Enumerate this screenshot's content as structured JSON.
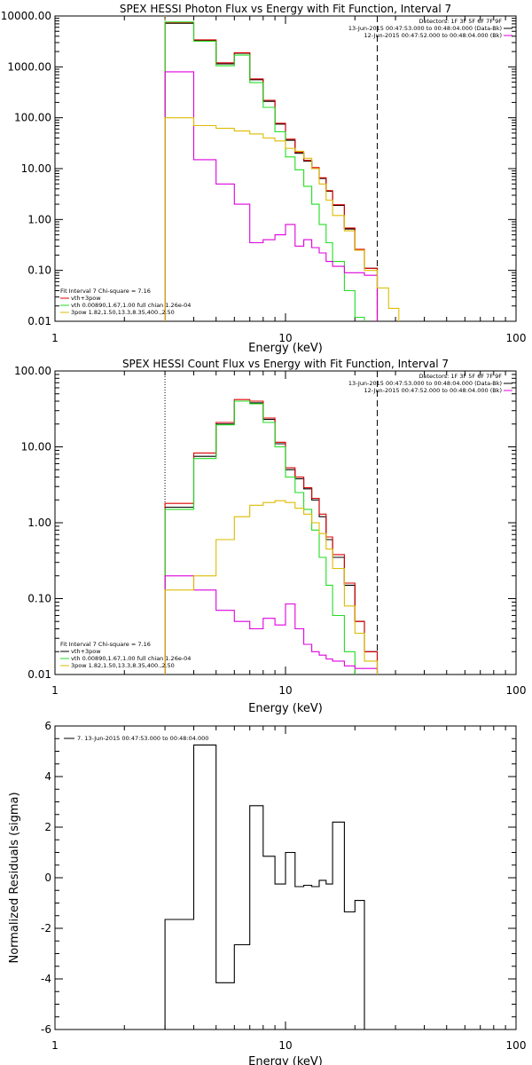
{
  "chart_data": [
    {
      "type": "line",
      "title": "SPEX HESSI Photon Flux vs Energy with Fit Function, Interval 7",
      "xlabel": "Energy (keV)",
      "ylabel": "",
      "x_scale": "log",
      "y_scale": "log",
      "xlim": [
        1,
        100
      ],
      "ylim": [
        0.01,
        10000
      ],
      "x_ticks": [
        {
          "v": 1,
          "label": "1"
        },
        {
          "v": 10,
          "label": "10"
        },
        {
          "v": 100,
          "label": "100"
        }
      ],
      "y_ticks": [
        {
          "v": 10000,
          "label": "10000.00"
        },
        {
          "v": 1000,
          "label": "1000.00"
        },
        {
          "v": 100,
          "label": "100.00"
        },
        {
          "v": 10,
          "label": "10.00"
        },
        {
          "v": 1,
          "label": "1.00"
        },
        {
          "v": 0.1,
          "label": "0.10"
        },
        {
          "v": 0.01,
          "label": "0.01"
        }
      ],
      "edges_keV": [
        3,
        4,
        5,
        6,
        7,
        8,
        9,
        10,
        11,
        12,
        13,
        14,
        15,
        16,
        18,
        20,
        22,
        25,
        28,
        31
      ],
      "series": [
        {
          "name": "",
          "color": "#000000",
          "values": [
            7200,
            3300,
            1150,
            1850,
            560,
            210,
            75,
            36,
            20,
            14,
            10,
            6.4,
            3.6,
            1.9,
            0.65,
            0.25,
            0.11,
            null,
            null
          ]
        },
        {
          "name": "",
          "color": "#dd0000",
          "values": [
            7400,
            3400,
            1200,
            1900,
            580,
            220,
            78,
            38,
            21,
            14.5,
            10.5,
            6.6,
            3.7,
            1.95,
            0.68,
            0.26,
            0.11,
            null,
            null
          ]
        },
        {
          "name": "",
          "color": "#22dd22",
          "values": [
            7600,
            3200,
            1050,
            1700,
            490,
            160,
            53,
            17,
            9.5,
            4.5,
            2.0,
            0.8,
            0.35,
            0.15,
            0.04,
            0.012,
            null,
            null,
            null
          ]
        },
        {
          "name": "",
          "color": "#dd00dd",
          "values": [
            800,
            15,
            5.0,
            2.0,
            0.35,
            0.4,
            0.5,
            0.8,
            0.3,
            0.4,
            0.28,
            0.22,
            0.15,
            0.12,
            0.09,
            0.09,
            0.08,
            null,
            null
          ]
        },
        {
          "name": "",
          "color": "#ddbb00",
          "values": [
            100,
            70,
            62,
            55,
            48,
            40,
            35,
            25,
            22,
            16,
            10,
            5.0,
            2.4,
            1.2,
            0.6,
            0.25,
            0.1,
            0.045,
            0.018
          ]
        }
      ],
      "vlines": [
        {
          "x": 3,
          "color": "#ddbb00",
          "style": "dotted"
        },
        {
          "x": 25,
          "color": "#000000",
          "style": "dashed"
        }
      ],
      "legend_top": [
        "Detectors: 1F 3F 5F 6F 7F 9F",
        "13-Jun-2015 00:47:53.000 to 00:48:04.000 (Data-Bk)",
        "12-Jun-2015 00:47:52.000 to 00:48:04.000 (Bk)"
      ],
      "legend_top_colors": [
        "",
        "#000000",
        "#dd00dd"
      ],
      "legend_bottom": [
        "Fit Interval 7   Chi-square = 7.16",
        "vth+3pow",
        "vth 0.00890,1.67,1.00  full chian 1.26e-04",
        "3pow  1.82,1.50,13.3,8.35,400.,2.50"
      ],
      "legend_bottom_colors": [
        "",
        "#dd0000",
        "#22dd22",
        "#ddbb00"
      ]
    },
    {
      "type": "line",
      "title": "SPEX HESSI Count Flux vs Energy with Fit Function, Interval 7",
      "xlabel": "Energy (keV)",
      "ylabel": "",
      "x_scale": "log",
      "y_scale": "log",
      "xlim": [
        1,
        100
      ],
      "ylim": [
        0.01,
        100
      ],
      "x_ticks": [
        {
          "v": 1,
          "label": "1"
        },
        {
          "v": 10,
          "label": "10"
        },
        {
          "v": 100,
          "label": "100"
        }
      ],
      "y_ticks": [
        {
          "v": 100,
          "label": "100.00"
        },
        {
          "v": 10,
          "label": "10.00"
        },
        {
          "v": 1,
          "label": "1.00"
        },
        {
          "v": 0.1,
          "label": "0.10"
        },
        {
          "v": 0.01,
          "label": "0.01"
        }
      ],
      "edges_keV": [
        3,
        4,
        5,
        6,
        7,
        8,
        9,
        10,
        11,
        12,
        13,
        14,
        15,
        16,
        18,
        20,
        22,
        25
      ],
      "series": [
        {
          "name": "",
          "color": "#000000",
          "values": [
            1.6,
            7.5,
            20,
            40,
            38,
            23,
            11,
            5.0,
            3.8,
            2.8,
            2.0,
            1.2,
            0.6,
            0.35,
            0.15,
            0.05,
            0.02
          ]
        },
        {
          "name": "",
          "color": "#dd0000",
          "values": [
            1.8,
            8.3,
            21,
            42,
            40,
            24,
            11.5,
            5.3,
            4.0,
            2.9,
            2.1,
            1.3,
            0.65,
            0.38,
            0.16,
            0.05,
            0.02
          ]
        },
        {
          "name": "",
          "color": "#22dd22",
          "values": [
            1.5,
            7.0,
            19.5,
            40,
            37,
            21,
            10,
            4.0,
            2.5,
            1.5,
            0.8,
            0.35,
            0.15,
            0.06,
            0.02,
            0.007,
            null
          ]
        },
        {
          "name": "",
          "color": "#dd00dd",
          "values": [
            0.2,
            0.13,
            0.07,
            0.05,
            0.04,
            0.055,
            0.045,
            0.085,
            0.04,
            0.025,
            0.02,
            0.018,
            0.016,
            0.015,
            0.013,
            0.012,
            0.012
          ]
        },
        {
          "name": "",
          "color": "#ddbb00",
          "values": [
            0.13,
            0.2,
            0.6,
            1.2,
            1.7,
            1.85,
            1.95,
            1.85,
            1.55,
            1.3,
            1.0,
            0.72,
            0.45,
            0.25,
            0.08,
            0.035,
            0.015
          ]
        }
      ],
      "vlines": [
        {
          "x": 3,
          "color": "#000000",
          "style": "dotted"
        },
        {
          "x": 25,
          "color": "#000000",
          "style": "dashed"
        }
      ],
      "legend_top": [
        "Detectors: 1F 3F 5F 6F 7F 9F",
        "13-Jun-2015 00:47:53.000 to 00:48:04.000 (Data-Bk)",
        "12-Jun-2015 00:47:52.000 to 00:48:04.000 (Bk)"
      ],
      "legend_top_colors": [
        "",
        "#000000",
        "#dd00dd"
      ],
      "legend_bottom": [
        "Fit Interval 7   Chi-square = 7.16",
        "vth+3pow",
        "vth 0.00890,1.67,1.00  full chian 1.26e-04",
        "3pow  1.82,1.50,13.3,8.35,400.,2.50"
      ],
      "legend_bottom_colors": [
        "",
        "#000000",
        "#22dd22",
        "#ddbb00"
      ]
    },
    {
      "type": "line",
      "title": "",
      "xlabel": "Energy (keV)",
      "ylabel": "Normalized Residuals (sigma)",
      "x_scale": "log",
      "y_scale": "linear",
      "xlim": [
        1,
        100
      ],
      "ylim": [
        -6,
        6
      ],
      "x_ticks": [
        {
          "v": 1,
          "label": "1"
        },
        {
          "v": 10,
          "label": "10"
        },
        {
          "v": 100,
          "label": "100"
        }
      ],
      "y_ticks": [
        {
          "v": 6,
          "label": "6"
        },
        {
          "v": 4,
          "label": "4"
        },
        {
          "v": 2,
          "label": "2"
        },
        {
          "v": 0,
          "label": "0"
        },
        {
          "v": -2,
          "label": "-2"
        },
        {
          "v": -4,
          "label": "-4"
        },
        {
          "v": -6,
          "label": "-6"
        }
      ],
      "edges_keV": [
        3,
        4,
        5,
        6,
        7,
        8,
        9,
        10,
        11,
        12,
        13,
        14,
        15,
        16,
        18,
        20,
        22,
        25
      ],
      "series": [
        {
          "name": "7. 13-Jun-2015 00:47:53.000 to 00:48:04.000",
          "color": "#000000",
          "values": [
            -1.65,
            5.25,
            -4.15,
            -2.65,
            2.85,
            0.85,
            -0.25,
            1.0,
            -0.35,
            -0.3,
            -0.35,
            -0.1,
            -0.25,
            2.2,
            -1.35,
            -0.9
          ]
        }
      ],
      "legend_top": [
        "7. 13-Jun-2015 00:47:53.000 to 00:48:04.000"
      ],
      "legend_top_colors": [
        "#000000"
      ]
    }
  ]
}
